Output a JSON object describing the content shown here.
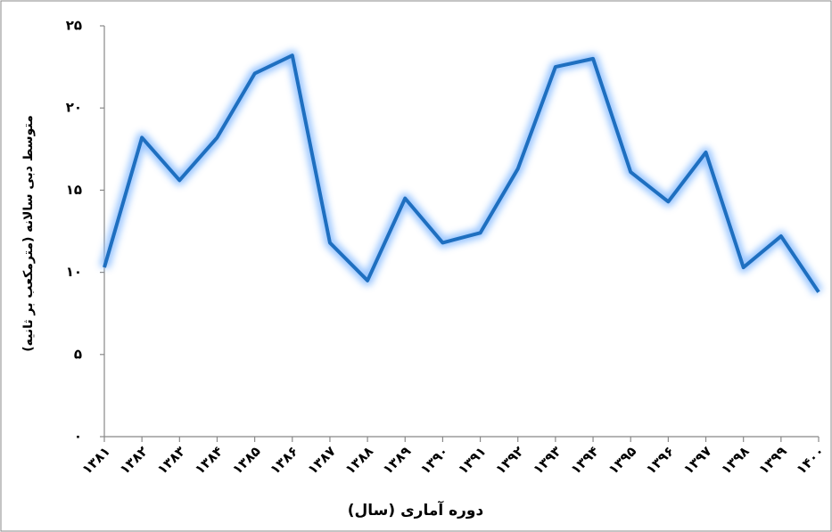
{
  "chart_data": {
    "type": "line",
    "x_label": "دوره آماری (سال)",
    "y_label": "متوسط دبی سالانه (مترمکعب بر ثانیه)",
    "categories": [
      "۱۳۸۱",
      "۱۳۸۲",
      "۱۳۸۳",
      "۱۳۸۴",
      "۱۳۸۵",
      "۱۳۸۶",
      "۱۳۸۷",
      "۱۳۸۸",
      "۱۳۸۹",
      "۱۳۹۰",
      "۱۳۹۱",
      "۱۳۹۲",
      "۱۳۹۳",
      "۱۳۹۴",
      "۱۳۹۵",
      "۱۳۹۶",
      "۱۳۹۷",
      "۱۳۹۸",
      "۱۳۹۹",
      "۱۴۰۰"
    ],
    "series": [
      {
        "color": "#1e6fc0",
        "values": [
          10.3,
          18.2,
          15.6,
          18.2,
          22.1,
          23.2,
          11.8,
          9.5,
          14.5,
          11.8,
          12.4,
          16.3,
          22.5,
          23.0,
          16.1,
          14.3,
          17.3,
          10.3,
          12.2,
          8.8
        ]
      }
    ],
    "ylim": [
      0,
      25
    ],
    "yticks": [
      {
        "value": 0,
        "label": "۰"
      },
      {
        "value": 5,
        "label": "۵"
      },
      {
        "value": 10,
        "label": "۱۰"
      },
      {
        "value": 15,
        "label": "۱۵"
      },
      {
        "value": 20,
        "label": "۲۰"
      },
      {
        "value": 25,
        "label": "۲۵"
      }
    ],
    "grid": false
  }
}
